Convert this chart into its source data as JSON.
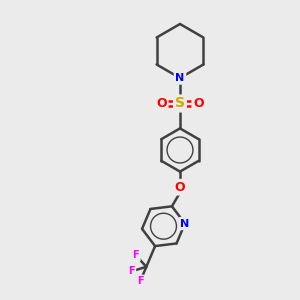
{
  "bg_color": "#ebebeb",
  "atom_colors": {
    "C": "#000000",
    "N": "#0000ff",
    "O": "#ff0000",
    "S": "#ccaa00",
    "F": "#ff00ff"
  },
  "bond_color": "#404040",
  "bond_width": 1.8,
  "fig_width": 3.0,
  "fig_height": 3.0,
  "dpi": 100,
  "xlim": [
    0,
    10
  ],
  "ylim": [
    0,
    10
  ]
}
